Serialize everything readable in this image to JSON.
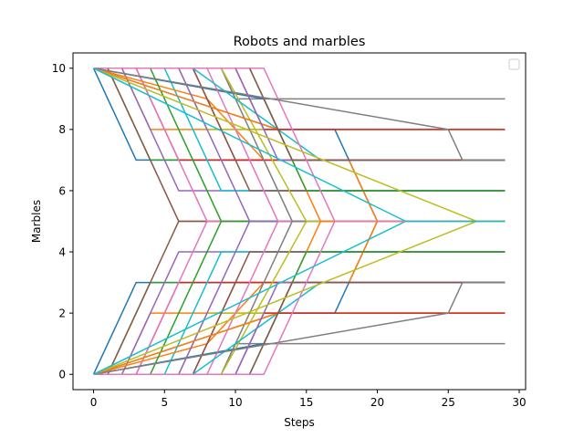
{
  "chart_data": {
    "type": "line",
    "title": "Robots and marbles",
    "xlabel": "Steps",
    "ylabel": "Marbles",
    "xlim": [
      -1.45,
      30.45
    ],
    "ylim": [
      -0.5,
      10.5
    ],
    "xticks": [
      0,
      5,
      10,
      15,
      20,
      25,
      30
    ],
    "yticks": [
      0,
      2,
      4,
      6,
      8,
      10
    ],
    "grid": false,
    "legend": {
      "placement": "top-right",
      "entries": []
    },
    "palette": [
      "#1f77b4",
      "#ff7f0e",
      "#2ca02c",
      "#d62728",
      "#9467bd",
      "#8c564b",
      "#e377c2",
      "#7f7f7f",
      "#bcbd22",
      "#17becf"
    ],
    "series": [
      {
        "color": "#1f77b4",
        "x": [
          0,
          3,
          29
        ],
        "y": [
          0,
          3,
          3
        ]
      },
      {
        "color": "#ff7f0e",
        "x": [
          0,
          2,
          4,
          29
        ],
        "y": [
          0,
          0,
          2,
          2
        ]
      },
      {
        "color": "#2ca02c",
        "x": [
          0,
          1,
          4,
          29
        ],
        "y": [
          0,
          0,
          3,
          3
        ]
      },
      {
        "color": "#d62728",
        "x": [
          0,
          3,
          6,
          29
        ],
        "y": [
          0,
          0,
          3,
          3
        ]
      },
      {
        "color": "#9467bd",
        "x": [
          0,
          2,
          6,
          29
        ],
        "y": [
          0,
          0,
          4,
          4
        ]
      },
      {
        "color": "#8c564b",
        "x": [
          0,
          1,
          6,
          29
        ],
        "y": [
          0,
          0,
          5,
          5
        ]
      },
      {
        "color": "#e377c2",
        "x": [
          0,
          3,
          8,
          29
        ],
        "y": [
          0,
          0,
          5,
          5
        ]
      },
      {
        "color": "#7f7f7f",
        "x": [
          0,
          9,
          10,
          12,
          29
        ],
        "y": [
          0,
          0,
          1,
          1,
          1
        ]
      },
      {
        "color": "#bcbd22",
        "x": [
          0,
          6,
          8,
          29
        ],
        "y": [
          0,
          0,
          2,
          2
        ]
      },
      {
        "color": "#17becf",
        "x": [
          0,
          5,
          9,
          29
        ],
        "y": [
          0,
          0,
          4,
          4
        ]
      },
      {
        "color": "#1f77b4",
        "x": [
          0,
          12,
          13,
          17,
          20,
          29
        ],
        "y": [
          0,
          1,
          2,
          2,
          5,
          5
        ]
      },
      {
        "color": "#ff7f0e",
        "x": [
          0,
          8,
          12,
          18,
          20,
          29
        ],
        "y": [
          0,
          1,
          3,
          3,
          5,
          5
        ]
      },
      {
        "color": "#2ca02c",
        "x": [
          0,
          4,
          9,
          29
        ],
        "y": [
          0,
          0,
          5,
          5
        ]
      },
      {
        "color": "#d62728",
        "x": [
          0,
          7,
          10,
          29
        ],
        "y": [
          0,
          0,
          3,
          3
        ]
      },
      {
        "color": "#9467bd",
        "x": [
          0,
          6,
          11,
          29
        ],
        "y": [
          0,
          0,
          5,
          5
        ]
      },
      {
        "color": "#8c564b",
        "x": [
          0,
          7,
          11,
          29
        ],
        "y": [
          0,
          0,
          4,
          4
        ]
      },
      {
        "color": "#e377c2",
        "x": [
          0,
          8,
          13,
          29
        ],
        "y": [
          0,
          0,
          5,
          5
        ]
      },
      {
        "color": "#7f7f7f",
        "x": [
          0,
          9,
          14,
          29
        ],
        "y": [
          0,
          0,
          5,
          5
        ]
      },
      {
        "color": "#bcbd22",
        "x": [
          0,
          9,
          15,
          29
        ],
        "y": [
          0,
          0,
          5,
          5
        ]
      },
      {
        "color": "#17becf",
        "x": [
          0,
          7,
          16,
          29
        ],
        "y": [
          0,
          0,
          3,
          3
        ]
      },
      {
        "color": "#1f77b4",
        "x": [
          0,
          13,
          14,
          29
        ],
        "y": [
          0,
          2,
          3,
          3
        ]
      },
      {
        "color": "#ff7f0e",
        "x": [
          0,
          13,
          16,
          29
        ],
        "y": [
          0,
          2,
          5,
          5
        ]
      },
      {
        "color": "#2ca02c",
        "x": [
          0,
          11,
          15,
          29
        ],
        "y": [
          0,
          0,
          4,
          4
        ]
      },
      {
        "color": "#d62728",
        "x": [
          0,
          10,
          12,
          29
        ],
        "y": [
          0,
          0,
          2,
          2
        ]
      },
      {
        "color": "#9467bd",
        "x": [
          0,
          10,
          13,
          29
        ],
        "y": [
          0,
          0,
          3,
          3
        ]
      },
      {
        "color": "#8c564b",
        "x": [
          0,
          11,
          14,
          29
        ],
        "y": [
          0,
          0,
          3,
          3
        ]
      },
      {
        "color": "#e377c2",
        "x": [
          0,
          12,
          17,
          29
        ],
        "y": [
          0,
          0,
          5,
          5
        ]
      },
      {
        "color": "#7f7f7f",
        "x": [
          0,
          25,
          26,
          29
        ],
        "y": [
          0,
          2,
          3,
          3
        ]
      },
      {
        "color": "#bcbd22",
        "x": [
          0,
          27,
          29
        ],
        "y": [
          0,
          5,
          5
        ]
      },
      {
        "color": "#17becf",
        "x": [
          0,
          22,
          29
        ],
        "y": [
          0,
          5,
          5
        ]
      },
      {
        "color": "#1f77b4",
        "x": [
          0,
          3,
          29
        ],
        "y": [
          10,
          7,
          7
        ]
      },
      {
        "color": "#ff7f0e",
        "x": [
          0,
          2,
          4,
          29
        ],
        "y": [
          10,
          10,
          8,
          8
        ]
      },
      {
        "color": "#2ca02c",
        "x": [
          0,
          1,
          4,
          29
        ],
        "y": [
          10,
          10,
          7,
          7
        ]
      },
      {
        "color": "#d62728",
        "x": [
          0,
          3,
          6,
          29
        ],
        "y": [
          10,
          10,
          7,
          7
        ]
      },
      {
        "color": "#9467bd",
        "x": [
          0,
          2,
          6,
          29
        ],
        "y": [
          10,
          10,
          6,
          6
        ]
      },
      {
        "color": "#8c564b",
        "x": [
          0,
          1,
          6,
          29
        ],
        "y": [
          10,
          10,
          5,
          5
        ]
      },
      {
        "color": "#e377c2",
        "x": [
          0,
          3,
          8,
          29
        ],
        "y": [
          10,
          10,
          5,
          5
        ]
      },
      {
        "color": "#7f7f7f",
        "x": [
          0,
          9,
          10,
          12,
          29
        ],
        "y": [
          10,
          10,
          9,
          9,
          9
        ]
      },
      {
        "color": "#bcbd22",
        "x": [
          0,
          6,
          8,
          29
        ],
        "y": [
          10,
          10,
          8,
          8
        ]
      },
      {
        "color": "#17becf",
        "x": [
          0,
          5,
          9,
          29
        ],
        "y": [
          10,
          10,
          6,
          6
        ]
      },
      {
        "color": "#1f77b4",
        "x": [
          0,
          12,
          13,
          17,
          20,
          29
        ],
        "y": [
          10,
          9,
          8,
          8,
          5,
          5
        ]
      },
      {
        "color": "#ff7f0e",
        "x": [
          0,
          8,
          12,
          18,
          20,
          29
        ],
        "y": [
          10,
          9,
          7,
          7,
          5,
          5
        ]
      },
      {
        "color": "#2ca02c",
        "x": [
          0,
          4,
          9,
          29
        ],
        "y": [
          10,
          10,
          5,
          5
        ]
      },
      {
        "color": "#d62728",
        "x": [
          0,
          7,
          10,
          29
        ],
        "y": [
          10,
          10,
          7,
          7
        ]
      },
      {
        "color": "#9467bd",
        "x": [
          0,
          6,
          11,
          29
        ],
        "y": [
          10,
          10,
          5,
          5
        ]
      },
      {
        "color": "#8c564b",
        "x": [
          0,
          7,
          11,
          29
        ],
        "y": [
          10,
          10,
          6,
          6
        ]
      },
      {
        "color": "#e377c2",
        "x": [
          0,
          8,
          13,
          29
        ],
        "y": [
          10,
          10,
          5,
          5
        ]
      },
      {
        "color": "#7f7f7f",
        "x": [
          0,
          9,
          14,
          29
        ],
        "y": [
          10,
          10,
          5,
          5
        ]
      },
      {
        "color": "#bcbd22",
        "x": [
          0,
          9,
          15,
          29
        ],
        "y": [
          10,
          10,
          5,
          5
        ]
      },
      {
        "color": "#17becf",
        "x": [
          0,
          7,
          16,
          29
        ],
        "y": [
          10,
          10,
          7,
          7
        ]
      },
      {
        "color": "#1f77b4",
        "x": [
          0,
          13,
          14,
          29
        ],
        "y": [
          10,
          8,
          7,
          7
        ]
      },
      {
        "color": "#ff7f0e",
        "x": [
          0,
          13,
          16,
          29
        ],
        "y": [
          10,
          8,
          5,
          5
        ]
      },
      {
        "color": "#2ca02c",
        "x": [
          0,
          11,
          15,
          29
        ],
        "y": [
          10,
          10,
          6,
          6
        ]
      },
      {
        "color": "#d62728",
        "x": [
          0,
          10,
          12,
          29
        ],
        "y": [
          10,
          10,
          8,
          8
        ]
      },
      {
        "color": "#9467bd",
        "x": [
          0,
          10,
          13,
          29
        ],
        "y": [
          10,
          10,
          7,
          7
        ]
      },
      {
        "color": "#8c564b",
        "x": [
          0,
          11,
          14,
          29
        ],
        "y": [
          10,
          10,
          7,
          7
        ]
      },
      {
        "color": "#e377c2",
        "x": [
          0,
          12,
          17,
          29
        ],
        "y": [
          10,
          10,
          5,
          5
        ]
      },
      {
        "color": "#7f7f7f",
        "x": [
          0,
          25,
          26,
          29
        ],
        "y": [
          10,
          8,
          7,
          7
        ]
      },
      {
        "color": "#bcbd22",
        "x": [
          0,
          27,
          29
        ],
        "y": [
          10,
          5,
          5
        ]
      },
      {
        "color": "#17becf",
        "x": [
          0,
          22,
          29
        ],
        "y": [
          10,
          5,
          5
        ]
      }
    ]
  }
}
